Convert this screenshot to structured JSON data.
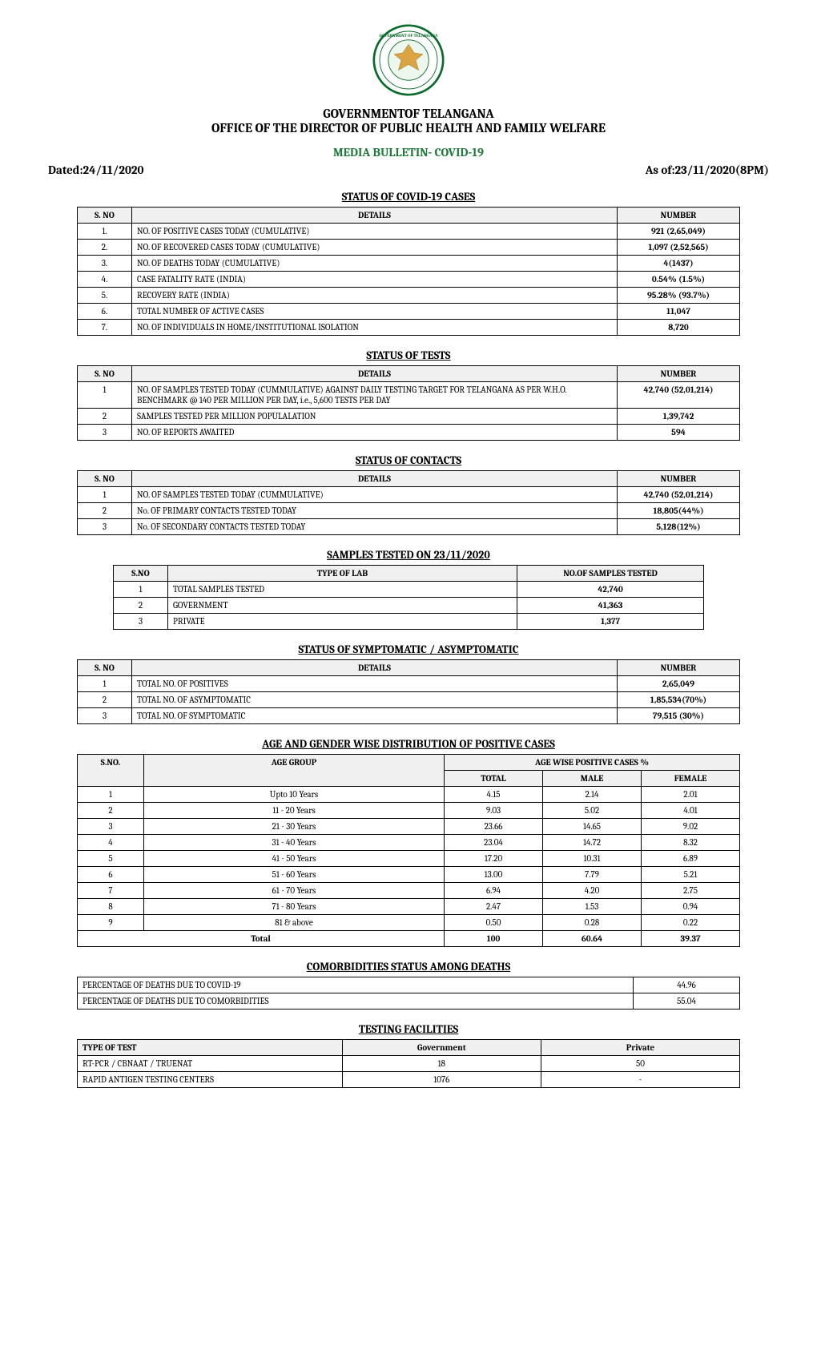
{
  "header": {
    "gov": "GOVERNMENTOF TELANGANA",
    "office": "OFFICE OF THE DIRECTOR OF PUBLIC HEALTH AND FAMILY WELFARE",
    "bulletin": "MEDIA BULLETIN- COVID-19",
    "dated": "Dated:24/11/2020",
    "asof": "As of:23/11/2020(8PM)"
  },
  "cases": {
    "title": "STATUS OF COVID-19 CASES",
    "cols": [
      "S. NO",
      "DETAILS",
      "NUMBER"
    ],
    "rows": [
      [
        "1.",
        "NO. OF POSITIVE CASES TODAY (CUMULATIVE)",
        "921 (2,65,049)"
      ],
      [
        "2.",
        "NO. OF RECOVERED CASES TODAY (CUMULATIVE)",
        "1,097 (2,52,565)"
      ],
      [
        "3.",
        "NO. OF DEATHS TODAY (CUMULATIVE)",
        "4(1437)"
      ],
      [
        "4.",
        "CASE FATALITY RATE (INDIA)",
        "0.54% (1.5%)"
      ],
      [
        "5.",
        "RECOVERY RATE (INDIA)",
        "95.28% (93.7%)"
      ],
      [
        "6.",
        "TOTAL NUMBER OF ACTIVE CASES",
        "11,047"
      ],
      [
        "7.",
        "NO. OF INDIVIDUALS IN HOME/INSTITUTIONAL ISOLATION",
        "8,720"
      ]
    ]
  },
  "tests": {
    "title": "STATUS OF TESTS",
    "cols": [
      "S. NO",
      "DETAILS",
      "NUMBER"
    ],
    "rows": [
      [
        "1",
        "NO. OF SAMPLES TESTED TODAY (CUMMULATIVE) AGAINST DAILY TESTING TARGET FOR TELANGANA AS PER W.H.O. BENCHMARK @ 140 PER MILLION PER DAY, i.e., 5,600 TESTS PER DAY",
        "42,740 (52,01,214)"
      ],
      [
        "2",
        "SAMPLES TESTED PER MILLION POPULALATION",
        "1,39,742"
      ],
      [
        "3",
        "NO. OF REPORTS AWAITED",
        "594"
      ]
    ]
  },
  "contacts": {
    "title": "STATUS OF CONTACTS",
    "cols": [
      "S. NO",
      "DETAILS",
      "NUMBER"
    ],
    "rows": [
      [
        "1",
        "NO. OF SAMPLES TESTED TODAY (CUMMULATIVE)",
        "42,740 (52,01,214)"
      ],
      [
        "2",
        "No. OF PRIMARY CONTACTS TESTED TODAY",
        "18,805(44%)"
      ],
      [
        "3",
        "No. OF SECONDARY CONTACTS TESTED TODAY",
        "5,128(12%)"
      ]
    ]
  },
  "samples": {
    "title": "SAMPLES TESTED ON 23/11/2020",
    "cols": [
      "S.NO",
      "TYPE OF LAB",
      "NO.OF SAMPLES TESTED"
    ],
    "rows": [
      [
        "1",
        "TOTAL SAMPLES TESTED",
        "42,740"
      ],
      [
        "2",
        "GOVERNMENT",
        "41,363"
      ],
      [
        "3",
        "PRIVATE",
        "1,377"
      ]
    ]
  },
  "sympt": {
    "title": "STATUS OF SYMPTOMATIC / ASYMPTOMATIC",
    "cols": [
      "S. NO",
      "DETAILS",
      "NUMBER"
    ],
    "rows": [
      [
        "1",
        "TOTAL NO. OF POSITIVES",
        "2,65,049"
      ],
      [
        "2",
        "TOTAL NO. OF ASYMPTOMATIC",
        "1,85,534(70%)"
      ],
      [
        "3",
        "TOTAL NO. OF SYMPTOMATIC",
        "79,515 (30%)"
      ]
    ]
  },
  "age": {
    "title": "AGE AND GENDER WISE DISTRIBUTION OF POSITIVE CASES",
    "head1": [
      "S.NO.",
      "AGE GROUP",
      "AGE WISE POSITIVE CASES %"
    ],
    "head2": [
      "TOTAL",
      "MALE",
      "FEMALE"
    ],
    "rows": [
      [
        "1",
        "Upto 10 Years",
        "4.15",
        "2.14",
        "2.01"
      ],
      [
        "2",
        "11 - 20 Years",
        "9.03",
        "5.02",
        "4.01"
      ],
      [
        "3",
        "21 - 30 Years",
        "23.66",
        "14.65",
        "9.02"
      ],
      [
        "4",
        "31 - 40 Years",
        "23.04",
        "14.72",
        "8.32"
      ],
      [
        "5",
        "41 - 50 Years",
        "17.20",
        "10.31",
        "6.89"
      ],
      [
        "6",
        "51 - 60 Years",
        "13.00",
        "7.79",
        "5.21"
      ],
      [
        "7",
        "61 - 70 Years",
        "6.94",
        "4.20",
        "2.75"
      ],
      [
        "8",
        "71 - 80 Years",
        "2.47",
        "1.53",
        "0.94"
      ],
      [
        "9",
        "81 & above",
        "0.50",
        "0.28",
        "0.22"
      ]
    ],
    "total": [
      "Total",
      "100",
      "60.64",
      "39.37"
    ]
  },
  "comorb": {
    "title": "COMORBIDITIES STATUS AMONG DEATHS",
    "rows": [
      [
        "PERCENTAGE OF DEATHS DUE TO COVID-19",
        "44.96"
      ],
      [
        "PERCENTAGE OF DEATHS DUE TO COMORBIDITIES",
        "55.04"
      ]
    ]
  },
  "facilities": {
    "title": "TESTING FACILITIES",
    "cols": [
      "TYPE OF TEST",
      "Government",
      "Private"
    ],
    "rows": [
      [
        "RT-PCR / CBNAAT / TRUENAT",
        "18",
        "50"
      ],
      [
        "RAPID ANTIGEN TESTING CENTERS",
        "1076",
        "-"
      ]
    ]
  }
}
